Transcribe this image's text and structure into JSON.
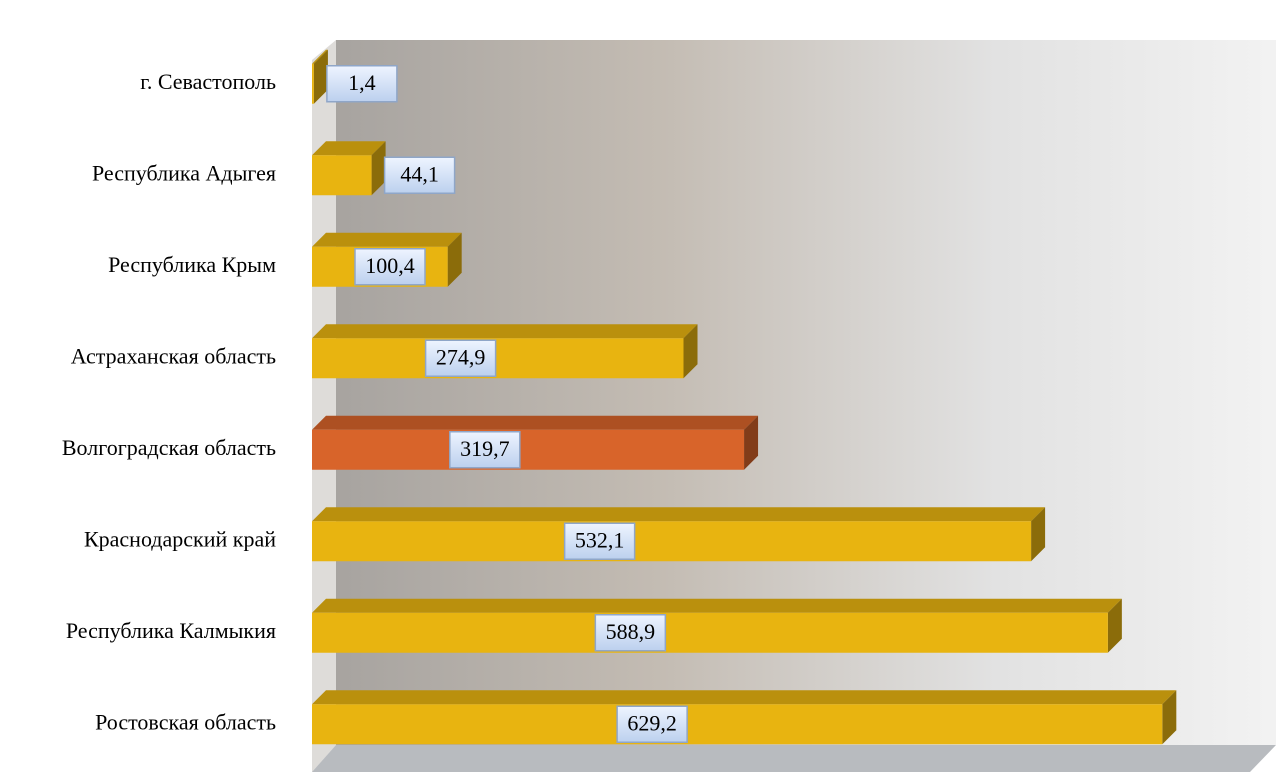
{
  "chart_data": {
    "type": "bar3d-horizontal",
    "categories": [
      "г. Севастополь",
      "Республика Адыгея",
      "Республика Крым",
      "Астраханская область",
      "Волгоградская область",
      "Краснодарский край",
      "Республика Калмыкия",
      "Ростовская область"
    ],
    "values": [
      1.4,
      44.1,
      100.4,
      274.9,
      319.7,
      532.1,
      588.9,
      629.2
    ],
    "value_labels": [
      "1,4",
      "44,1",
      "100,4",
      "274,9",
      "319,7",
      "532,1",
      "588,9",
      "629,2"
    ],
    "colors": [
      "#e8b410",
      "#e8b410",
      "#e8b410",
      "#e8b410",
      "#d8642a",
      "#e8b410",
      "#e8b410",
      "#e8b410"
    ],
    "xlim": [
      0,
      700
    ]
  }
}
